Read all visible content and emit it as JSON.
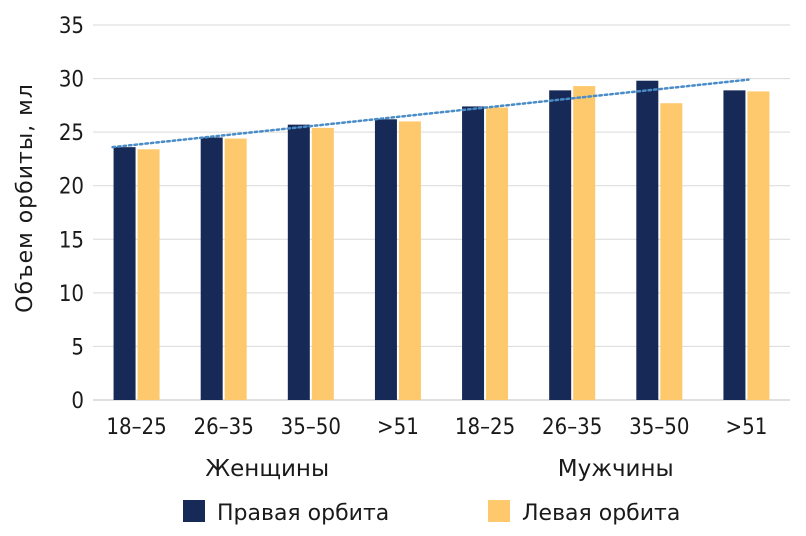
{
  "chart_data": {
    "type": "bar",
    "ylabel": "Объем орбиты, мл",
    "ylim": [
      0,
      35
    ],
    "yticks": [
      0,
      5,
      10,
      15,
      20,
      25,
      30,
      35
    ],
    "grid": "horizontal",
    "categories": [
      "18–25",
      "26–35",
      "35–50",
      ">51",
      "18–25",
      "26–35",
      "35–50",
      ">51"
    ],
    "groups": [
      {
        "label": "Женщины",
        "from": 0,
        "to": 3
      },
      {
        "label": "Мужчины",
        "from": 4,
        "to": 7
      }
    ],
    "series": [
      {
        "name": "Правая орбита",
        "color": "#172957",
        "values": [
          23.6,
          24.5,
          25.7,
          26.2,
          27.4,
          28.9,
          29.8,
          28.9
        ]
      },
      {
        "name": "Левая орбита",
        "color": "#FDC96C",
        "values": [
          23.4,
          24.4,
          25.4,
          26.0,
          27.3,
          29.3,
          27.7,
          28.8
        ]
      }
    ],
    "trendline": {
      "style": "dotted",
      "color": "#4A8CC7",
      "start": 23.6,
      "end": 29.9
    },
    "legend_position": "bottom"
  }
}
